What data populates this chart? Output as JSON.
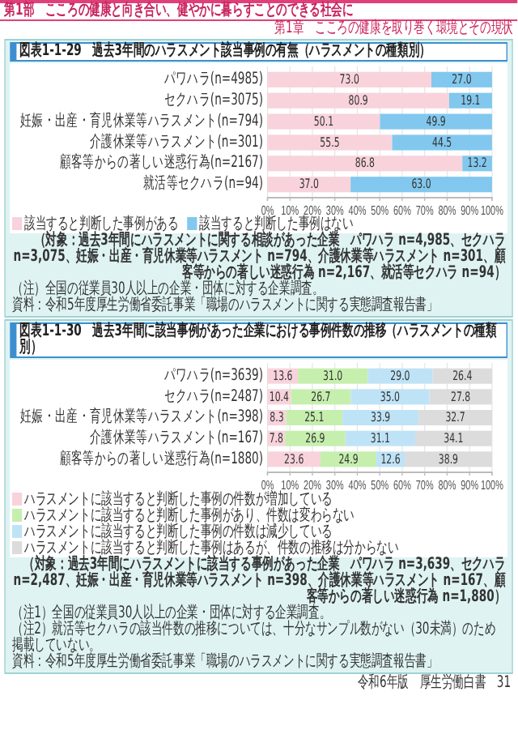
{
  "chart_data": [
    {
      "type": "bar",
      "orientation": "horizontal",
      "stacked": true,
      "title": "図表1-1-29　過去3年間のハラスメント該当事例の有無（ハラスメントの種類別）",
      "categories": [
        "パワハラ(n=4985)",
        "セクハラ(n=3075)",
        "妊娠・出産・育児休業等ハラスメント(n=794)",
        "介護休業等ハラスメント(n=301)",
        "顧客等からの著しい迷惑行為(n=2167)",
        "就活等セクハラ(n=94)"
      ],
      "series": [
        {
          "name": "該当すると判断した事例がある",
          "color": "#f8d3dc",
          "values": [
            73.0,
            80.9,
            50.1,
            55.5,
            86.8,
            37.0
          ],
          "value_labels": [
            "73.0",
            "80.9",
            "50.1",
            "55.5",
            "86.8",
            "37.0"
          ]
        },
        {
          "name": "該当すると判断した事例はない",
          "color": "#82c8ee",
          "values": [
            27.0,
            19.1,
            49.9,
            44.5,
            13.2,
            63.0
          ],
          "value_labels": [
            "27.0",
            "19.1",
            "49.9",
            "44.5",
            "13.2",
            "63.0"
          ]
        }
      ],
      "xlim": [
        0,
        100
      ],
      "xticks": [
        {
          "value": 0,
          "label": "0%"
        },
        {
          "value": 10,
          "label": "10%"
        },
        {
          "value": 20,
          "label": "20%"
        },
        {
          "value": 30,
          "label": "30%"
        },
        {
          "value": 40,
          "label": "40%"
        },
        {
          "value": 50,
          "label": "50%"
        },
        {
          "value": 60,
          "label": "60%"
        },
        {
          "value": 70,
          "label": "70%"
        },
        {
          "value": 80,
          "label": "80%"
        },
        {
          "value": 90,
          "label": "90%"
        },
        {
          "value": 100,
          "label": "100%"
        }
      ],
      "grid": "x",
      "legend": "bottom",
      "annotations": [
        "第1部　こころの健康と向き合い、健やかに暮らすことのできる社会に",
        "第1章　こころの健康を取り巻く環境とその現状",
        "（対象：過去3年間にハラスメントに関する相談があった企業　パワハラ n=4,985、セクハラ n=3,075、妊娠・出産・育児休業等ハラスメント n=794、介護休業等ハラスメント n=301、顧客等からの著しい迷惑行為 n=2,167、就活等セクハラ n=94）",
        "（注）全国の従業員30人以上の企業・団体に対する企業調査。",
        "資料：令和5年度厚生労働省委託事業「職場のハラスメントに関する実態調査報告書」"
      ]
    },
    {
      "type": "bar",
      "orientation": "horizontal",
      "stacked": true,
      "title": "図表1-1-30　過去3年間に該当事例があった企業における事例件数の推移（ハラスメントの種類別）",
      "categories": [
        "パワハラ(n=3639)",
        "セクハラ(n=2487)",
        "妊娠・出産・育児休業等ハラスメント(n=398)",
        "介護休業等ハラスメント(n=167)",
        "顧客等からの著しい迷惑行為(n=1880)"
      ],
      "series": [
        {
          "name": "ハラスメントに該当すると判断した事例の件数が増加している",
          "color": "#f8d3dc",
          "values": [
            13.6,
            10.4,
            8.3,
            7.8,
            23.6
          ],
          "value_labels": [
            "13.6",
            "10.4",
            "8.3",
            "7.8",
            "23.6"
          ]
        },
        {
          "name": "ハラスメントに該当すると判断した事例があり、件数は変わらない",
          "color": "#c6efae",
          "values": [
            31.0,
            26.7,
            25.1,
            26.9,
            24.9
          ],
          "value_labels": [
            "31.0",
            "26.7",
            "25.1",
            "26.9",
            "24.9"
          ]
        },
        {
          "name": "ハラスメントに該当すると判断した事例の件数は減少している",
          "color": "#bfe3f6",
          "values": [
            29.0,
            35.0,
            33.9,
            31.1,
            12.6
          ],
          "value_labels": [
            "29.0",
            "35.0",
            "33.9",
            "31.1",
            "12.6"
          ]
        },
        {
          "name": "ハラスメントに該当すると判断した事例はあるが、件数の推移は分からない",
          "color": "#dcdcdc",
          "values": [
            26.4,
            27.8,
            32.7,
            34.1,
            38.9
          ],
          "value_labels": [
            "26.4",
            "27.8",
            "32.7",
            "34.1",
            "38.9"
          ]
        }
      ],
      "xlim": [
        0,
        100
      ],
      "xticks": [
        {
          "value": 0,
          "label": "0%"
        },
        {
          "value": 10,
          "label": "10%"
        },
        {
          "value": 20,
          "label": "20%"
        },
        {
          "value": 30,
          "label": "30%"
        },
        {
          "value": 40,
          "label": "40%"
        },
        {
          "value": 50,
          "label": "50%"
        },
        {
          "value": 60,
          "label": "60%"
        },
        {
          "value": 70,
          "label": "70%"
        },
        {
          "value": 80,
          "label": "80%"
        },
        {
          "value": 90,
          "label": "90%"
        },
        {
          "value": 100,
          "label": "100%"
        }
      ],
      "grid": "x",
      "legend": "bottom",
      "annotations": [
        "（対象：過去3年間にハラスメントに該当する事例があった企業　パワハラ n=3,639、セクハラ n=2,487、妊娠・出産・育児休業等ハラスメント n=398、介護休業等ハラスメント n=167、顧客等からの著しい迷惑行為 n=1,880）",
        "（注1）全国の従業員30人以上の企業・団体に対する企業調査。",
        "（注2）就活等セクハラの該当件数の推移については、十分なサンプル数がない（30未満）のため掲載していない。",
        "資料：令和5年度厚生労働省委託事業「職場のハラスメントに関する実態調査報告書」",
        "令和6年版　厚生労働白書",
        "31"
      ]
    }
  ]
}
